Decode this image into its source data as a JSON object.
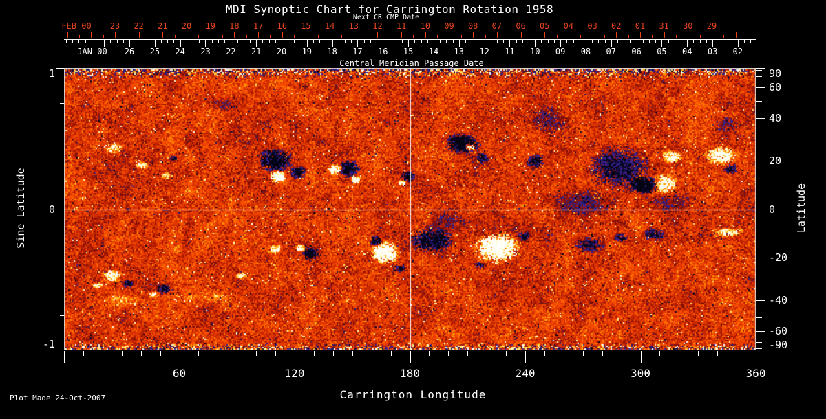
{
  "title": "MDI Synoptic Chart for Carrington Rotation 1958",
  "footer": {
    "plot_made": "Plot Made 24-Oct-2007"
  },
  "colors": {
    "background": "#000000",
    "text": "#FFFFFF",
    "next_cr_axis": "#E8441E",
    "frame": "#D8D8D8",
    "reference_line": "#FFFFFF"
  },
  "top_axis_red": {
    "title": "Next CR CMP Date",
    "month_label": "FEB 00",
    "day_labels": [
      "23",
      "22",
      "21",
      "20",
      "19",
      "18",
      "17",
      "16",
      "15",
      "14",
      "13",
      "12",
      "11",
      "10",
      "09",
      "08",
      "07",
      "06",
      "05",
      "04",
      "03",
      "02",
      "01",
      "31",
      "30",
      "29"
    ]
  },
  "top_axis_white": {
    "title": "Central Meridian Passage Date",
    "month_label": "JAN 00",
    "day_labels": [
      "26",
      "25",
      "24",
      "23",
      "22",
      "21",
      "20",
      "19",
      "18",
      "17",
      "16",
      "15",
      "14",
      "13",
      "12",
      "11",
      "10",
      "09",
      "08",
      "07",
      "06",
      "05",
      "04",
      "03",
      "02"
    ]
  },
  "left_axis": {
    "title": "Sine Latitude",
    "tick_labels": [
      "1",
      "0",
      "-1"
    ],
    "tick_values": [
      1,
      0,
      -1
    ],
    "minor_tick_step": 0.25,
    "range": [
      -1,
      1
    ]
  },
  "right_axis": {
    "title": "Latitude",
    "tick_labels": [
      "90",
      "60",
      "40",
      "20",
      "0",
      "-20",
      "-40",
      "-60",
      "-90"
    ],
    "tick_values": [
      90,
      60,
      40,
      20,
      0,
      -20,
      -40,
      -60,
      -90
    ],
    "minor_tick_step_deg": 10,
    "range_deg": [
      -90,
      90
    ]
  },
  "bottom_axis": {
    "title": "Carrington Longitude",
    "tick_labels": [
      "60",
      "120",
      "180",
      "240",
      "300",
      "360"
    ],
    "tick_values": [
      60,
      120,
      180,
      240,
      300,
      360
    ],
    "minor_tick_step_deg": 10,
    "range_deg": [
      0,
      360
    ]
  },
  "chart_data": {
    "type": "heatmap",
    "subtype": "solar-synoptic-magnetogram",
    "title": "MDI Synoptic Chart for Carrington Rotation 1958",
    "carrington_rotation": 1958,
    "x": {
      "label": "Carrington Longitude",
      "range_deg": [
        0,
        360
      ]
    },
    "y": {
      "label": "Sine Latitude",
      "range": [
        -1,
        1
      ]
    },
    "right_y": {
      "label": "Latitude",
      "ticks_deg": [
        90,
        60,
        40,
        20,
        0,
        -20,
        -40,
        -60,
        -90
      ]
    },
    "reference_lines": {
      "vertical_at_lon": 180,
      "horizontal_at_sinlat": 0
    },
    "colormap": {
      "strong_negative": "#05051E",
      "negative": "#2E1E8C",
      "weak_negative": "#A01600",
      "neutral_quiet_sun": "#E84600",
      "weak_positive": "#FF9608",
      "positive": "#FFE878",
      "strong_positive": "#FFFFFA"
    },
    "polar_noise_bands": true,
    "active_regions": [
      {
        "lon": 110.0,
        "sinlat": 0.348,
        "rlon": 9.3,
        "rsin": 0.088,
        "pol": -1,
        "s": 1.5
      },
      {
        "lon": 111.4,
        "sinlat": 0.231,
        "rlon": 4.3,
        "rsin": 0.044,
        "pol": 1,
        "s": 1.6
      },
      {
        "lon": 121.8,
        "sinlat": 0.26,
        "rlon": 4.3,
        "rsin": 0.049,
        "pol": -1,
        "s": 1.4
      },
      {
        "lon": 141.1,
        "sinlat": 0.28,
        "rlon": 3.6,
        "rsin": 0.039,
        "pol": 1,
        "s": 1.5
      },
      {
        "lon": 148.3,
        "sinlat": 0.285,
        "rlon": 5.7,
        "rsin": 0.058,
        "pol": -1,
        "s": 1.5
      },
      {
        "lon": 151.9,
        "sinlat": 0.212,
        "rlon": 2.9,
        "rsin": 0.029,
        "pol": 1,
        "s": 1.5
      },
      {
        "lon": 179.1,
        "sinlat": 0.231,
        "rlon": 3.6,
        "rsin": 0.039,
        "pol": -1,
        "s": 1.4
      },
      {
        "lon": 175.9,
        "sinlat": 0.187,
        "rlon": 2.5,
        "rsin": 0.024,
        "pol": 1,
        "s": 1.5
      },
      {
        "lon": 207.4,
        "sinlat": 0.465,
        "rlon": 9.0,
        "rsin": 0.073,
        "pol": -1,
        "s": 1.7
      },
      {
        "lon": 211.0,
        "sinlat": 0.44,
        "rlon": 2.9,
        "rsin": 0.029,
        "pol": 1,
        "s": 1.8
      },
      {
        "lon": 217.8,
        "sinlat": 0.358,
        "rlon": 3.9,
        "rsin": 0.039,
        "pol": -1,
        "s": 1.3
      },
      {
        "lon": 245.4,
        "sinlat": 0.343,
        "rlon": 5.0,
        "rsin": 0.049,
        "pol": -1,
        "s": 1.3
      },
      {
        "lon": 288.4,
        "sinlat": 0.299,
        "rlon": 16.5,
        "rsin": 0.146,
        "pol": -1,
        "s": 1.0
      },
      {
        "lon": 301.3,
        "sinlat": 0.173,
        "rlon": 8.6,
        "rsin": 0.063,
        "pol": -1,
        "s": 1.7
      },
      {
        "lon": 312.7,
        "sinlat": 0.182,
        "rlon": 6.4,
        "rsin": 0.068,
        "pol": 1,
        "s": 1.4
      },
      {
        "lon": 316.3,
        "sinlat": 0.367,
        "rlon": 5.0,
        "rsin": 0.049,
        "pol": 1,
        "s": 1.3
      },
      {
        "lon": 341.4,
        "sinlat": 0.382,
        "rlon": 8.6,
        "rsin": 0.073,
        "pol": 1,
        "s": 1.2
      },
      {
        "lon": 347.1,
        "sinlat": 0.28,
        "rlon": 3.6,
        "rsin": 0.039,
        "pol": -1,
        "s": 1.2
      },
      {
        "lon": 25.8,
        "sinlat": 0.431,
        "rlon": 5.0,
        "rsin": 0.039,
        "pol": 1,
        "s": 1.1
      },
      {
        "lon": 40.5,
        "sinlat": 0.309,
        "rlon": 3.6,
        "rsin": 0.029,
        "pol": 1,
        "s": 1.0
      },
      {
        "lon": 53.0,
        "sinlat": 0.236,
        "rlon": 2.9,
        "rsin": 0.029,
        "pol": 1,
        "s": 1.0
      },
      {
        "lon": 57.0,
        "sinlat": 0.358,
        "rlon": 2.5,
        "rsin": 0.024,
        "pol": -1,
        "s": 1.0
      },
      {
        "lon": 167.3,
        "sinlat": -0.309,
        "rlon": 7.2,
        "rsin": 0.078,
        "pol": 1,
        "s": 1.7
      },
      {
        "lon": 162.3,
        "sinlat": -0.226,
        "rlon": 3.6,
        "rsin": 0.039,
        "pol": -1,
        "s": 1.4
      },
      {
        "lon": 174.8,
        "sinlat": -0.421,
        "rlon": 3.2,
        "rsin": 0.029,
        "pol": -1,
        "s": 1.2
      },
      {
        "lon": 191.6,
        "sinlat": -0.221,
        "rlon": 11.5,
        "rsin": 0.088,
        "pol": -1,
        "s": 1.5
      },
      {
        "lon": 225.7,
        "sinlat": -0.275,
        "rlon": 12.2,
        "rsin": 0.107,
        "pol": 1,
        "s": 1.8
      },
      {
        "lon": 239.6,
        "sinlat": -0.192,
        "rlon": 3.6,
        "rsin": 0.034,
        "pol": -1,
        "s": 1.2
      },
      {
        "lon": 216.4,
        "sinlat": -0.397,
        "rlon": 2.9,
        "rsin": 0.024,
        "pol": -1,
        "s": 1.1
      },
      {
        "lon": 128.2,
        "sinlat": -0.314,
        "rlon": 5.0,
        "rsin": 0.049,
        "pol": -1,
        "s": 1.3
      },
      {
        "lon": 122.9,
        "sinlat": -0.275,
        "rlon": 2.9,
        "rsin": 0.029,
        "pol": 1,
        "s": 1.3
      },
      {
        "lon": 109.6,
        "sinlat": -0.285,
        "rlon": 3.6,
        "rsin": 0.034,
        "pol": 1,
        "s": 1.2
      },
      {
        "lon": 92.4,
        "sinlat": -0.47,
        "rlon": 3.2,
        "rsin": 0.029,
        "pol": 1,
        "s": 1.1
      },
      {
        "lon": 25.1,
        "sinlat": -0.47,
        "rlon": 5.0,
        "rsin": 0.044,
        "pol": 1,
        "s": 1.2
      },
      {
        "lon": 33.3,
        "sinlat": -0.528,
        "rlon": 2.9,
        "rsin": 0.029,
        "pol": -1,
        "s": 1.1
      },
      {
        "lon": 17.2,
        "sinlat": -0.542,
        "rlon": 2.9,
        "rsin": 0.024,
        "pol": 1,
        "s": 1.0
      },
      {
        "lon": 51.9,
        "sinlat": -0.567,
        "rlon": 4.3,
        "rsin": 0.039,
        "pol": -1,
        "s": 1.2
      },
      {
        "lon": 46.6,
        "sinlat": -0.606,
        "rlon": 2.9,
        "rsin": 0.024,
        "pol": 1,
        "s": 1.0
      },
      {
        "lon": 273.3,
        "sinlat": -0.251,
        "rlon": 7.9,
        "rsin": 0.058,
        "pol": -1,
        "s": 1.0
      },
      {
        "lon": 289.8,
        "sinlat": -0.202,
        "rlon": 3.9,
        "rsin": 0.034,
        "pol": -1,
        "s": 1.0
      },
      {
        "lon": 307.3,
        "sinlat": -0.178,
        "rlon": 6.1,
        "rsin": 0.044,
        "pol": -1,
        "s": 1.1
      },
      {
        "lon": 345.0,
        "sinlat": -0.163,
        "rlon": 9.0,
        "rsin": 0.034,
        "pol": 1,
        "s": 1.0
      },
      {
        "lon": 270.0,
        "sinlat": 0.05,
        "rlon": 18.0,
        "rsin": 0.1,
        "pol": -1,
        "s": 0.5
      },
      {
        "lon": 200.0,
        "sinlat": -0.1,
        "rlon": 15.0,
        "rsin": 0.08,
        "pol": -1,
        "s": 0.45
      },
      {
        "lon": 315.0,
        "sinlat": 0.05,
        "rlon": 12.0,
        "rsin": 0.07,
        "pol": -1,
        "s": 0.4
      },
      {
        "lon": 253.0,
        "sinlat": 0.63,
        "rlon": 10.0,
        "rsin": 0.09,
        "pol": -1,
        "s": 0.55
      },
      {
        "lon": 345.0,
        "sinlat": 0.6,
        "rlon": 8.0,
        "rsin": 0.06,
        "pol": -1,
        "s": 0.5
      },
      {
        "lon": 82.0,
        "sinlat": 0.74,
        "rlon": 8.0,
        "rsin": 0.05,
        "pol": -1,
        "s": 0.45
      },
      {
        "lon": 30.0,
        "sinlat": -0.65,
        "rlon": 10.0,
        "rsin": 0.05,
        "pol": 1,
        "s": 0.45
      },
      {
        "lon": 75.0,
        "sinlat": -0.62,
        "rlon": 12.0,
        "rsin": 0.05,
        "pol": 1,
        "s": 0.4
      }
    ]
  }
}
